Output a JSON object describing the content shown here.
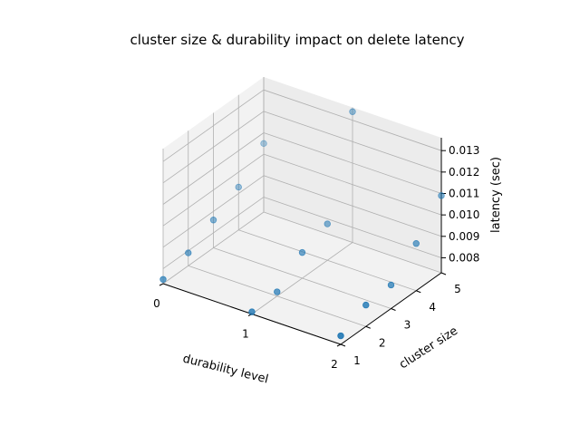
{
  "chart_data": {
    "type": "scatter",
    "projection": "3d",
    "title": "cluster size & durability impact on delete latency",
    "xlabel": "durability level",
    "ylabel": "cluster size",
    "zlabel": "latency (sec)",
    "xlim": [
      0,
      2
    ],
    "ylim": [
      1,
      5
    ],
    "zlim": [
      0.0073,
      0.0136
    ],
    "xticks": [
      "0",
      "1",
      "2"
    ],
    "yticks": [
      "1",
      "2",
      "3",
      "4",
      "5"
    ],
    "zticks": [
      "0.008",
      "0.009",
      "0.010",
      "0.011",
      "0.012",
      "0.013"
    ],
    "grid": true,
    "marker_color": "#1f77b4",
    "points": [
      {
        "x": 0,
        "y": 1,
        "z": 0.0075
      },
      {
        "x": 0,
        "y": 2,
        "z": 0.0079
      },
      {
        "x": 0,
        "y": 3,
        "z": 0.0086
      },
      {
        "x": 0,
        "y": 4,
        "z": 0.0093
      },
      {
        "x": 0,
        "y": 5,
        "z": 0.0105
      },
      {
        "x": 1,
        "y": 1,
        "z": 0.0074
      },
      {
        "x": 1,
        "y": 2,
        "z": 0.0075
      },
      {
        "x": 1,
        "y": 3,
        "z": 0.0085
      },
      {
        "x": 1,
        "y": 4,
        "z": 0.009
      },
      {
        "x": 1,
        "y": 5,
        "z": 0.0134
      },
      {
        "x": 2,
        "y": 1,
        "z": 0.0077
      },
      {
        "x": 2,
        "y": 2,
        "z": 0.0083
      },
      {
        "x": 2,
        "y": 3,
        "z": 0.0084
      },
      {
        "x": 2,
        "y": 4,
        "z": 0.0095
      },
      {
        "x": 2,
        "y": 5,
        "z": 0.0109
      }
    ]
  }
}
